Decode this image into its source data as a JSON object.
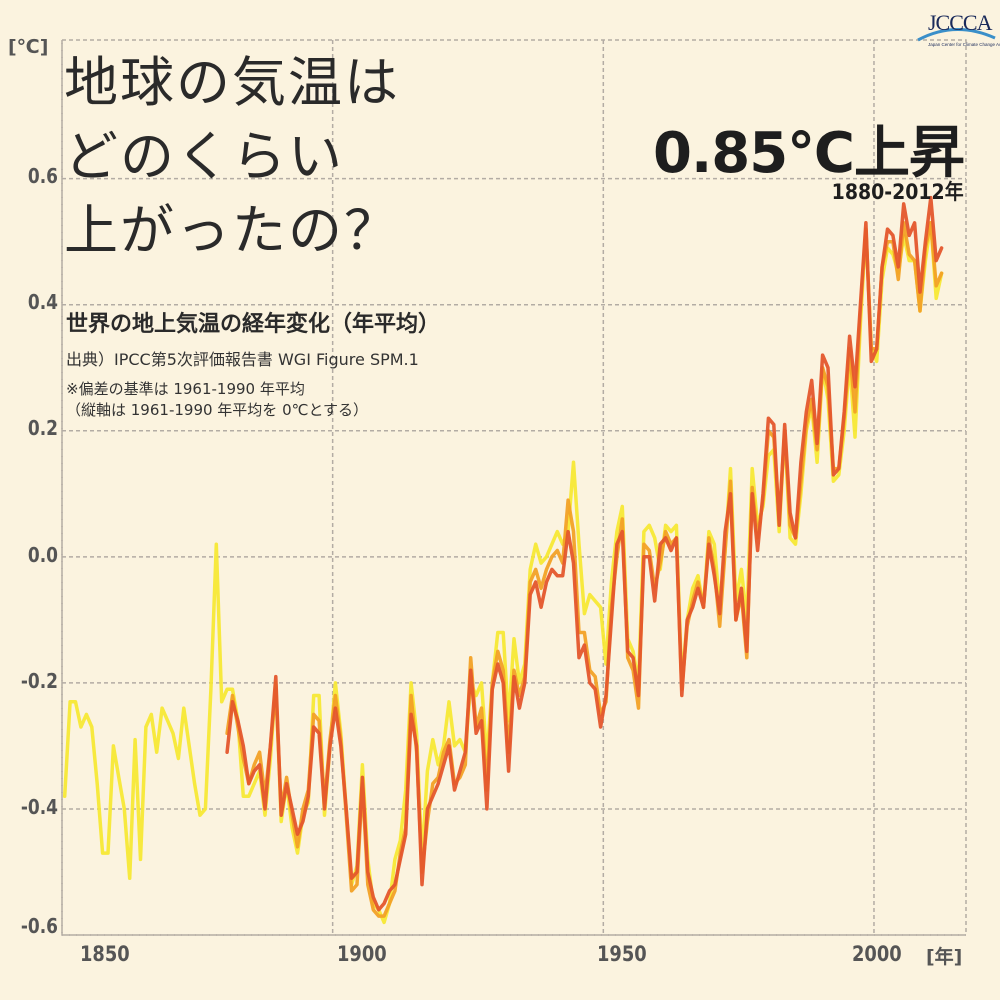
{
  "logo": {
    "text": "JCCCA",
    "subtext": "Japan Center for Climate Change Actions"
  },
  "title": {
    "lines": [
      "地球の気温は",
      "どのくらい",
      "上がったの？"
    ]
  },
  "headline": "0.85℃上昇",
  "period": "1880-2012年",
  "subtitle": "世界の地上気温の経年変化（年平均）",
  "source": "出典）IPCC第5次評価報告書 WGI Figure SPM.1",
  "notes": [
    "※偏差の基準は 1961-1990 年平均",
    "（縦軸は 1961-1990 年平均を 0℃とする）"
  ],
  "chart_data": {
    "type": "line",
    "title": "",
    "ylabel": "[℃]",
    "xlabel": "[年]",
    "xlim": [
      1850,
      2017
    ],
    "ylim": [
      -0.6,
      0.82
    ],
    "grid": true,
    "x_ticks": [
      "1850",
      "1900",
      "1950",
      "2000"
    ],
    "y_ticks": [
      "0.6",
      "0.4",
      "0.2",
      "0.0",
      "-0.2",
      "-0.4",
      "-0.6"
    ],
    "series": [
      {
        "color": "#f7e835",
        "start_year": 1850,
        "values": [
          -0.38,
          -0.23,
          -0.23,
          -0.27,
          -0.25,
          -0.27,
          -0.36,
          -0.47,
          -0.47,
          -0.3,
          -0.35,
          -0.4,
          -0.51,
          -0.29,
          -0.48,
          -0.27,
          -0.25,
          -0.31,
          -0.24,
          -0.26,
          -0.28,
          -0.32,
          -0.24,
          -0.3,
          -0.36,
          -0.41,
          -0.4,
          -0.21,
          0.02,
          -0.23,
          -0.21,
          -0.21,
          -0.26,
          -0.38,
          -0.38,
          -0.36,
          -0.34,
          -0.41,
          -0.32,
          -0.2,
          -0.42,
          -0.36,
          -0.43,
          -0.47,
          -0.41,
          -0.39,
          -0.22,
          -0.22,
          -0.41,
          -0.3,
          -0.2,
          -0.28,
          -0.4,
          -0.52,
          -0.49,
          -0.33,
          -0.48,
          -0.55,
          -0.56,
          -0.58,
          -0.55,
          -0.48,
          -0.45,
          -0.37,
          -0.2,
          -0.28,
          -0.48,
          -0.34,
          -0.29,
          -0.33,
          -0.3,
          -0.23,
          -0.3,
          -0.29,
          -0.31,
          -0.2,
          -0.22,
          -0.2,
          -0.32,
          -0.2,
          -0.12,
          -0.12,
          -0.26,
          -0.13,
          -0.2,
          -0.17,
          -0.02,
          0.02,
          -0.01,
          0.0,
          0.02,
          0.04,
          0.02,
          0.04,
          0.15,
          0.02,
          -0.09,
          -0.06,
          -0.07,
          -0.08,
          -0.17,
          -0.04,
          0.04,
          0.08,
          -0.13,
          -0.15,
          -0.2,
          0.04,
          0.05,
          0.03,
          -0.02,
          0.05,
          0.04,
          0.05,
          -0.2,
          -0.1,
          -0.05,
          -0.03,
          -0.08,
          0.04,
          0.02,
          -0.08,
          0.01,
          0.14,
          -0.07,
          -0.02,
          -0.1,
          0.14,
          0.05,
          0.08,
          0.16,
          0.17,
          0.04,
          0.2,
          0.03,
          0.02,
          0.1,
          0.2,
          0.24,
          0.15,
          0.3,
          0.25,
          0.12,
          0.13,
          0.2,
          0.31,
          0.19,
          0.37,
          0.52,
          0.33,
          0.31,
          0.44,
          0.49,
          0.48,
          0.45,
          0.51,
          0.47,
          0.47,
          0.39,
          0.47,
          0.53,
          0.41,
          0.45
        ]
      },
      {
        "color": "#f2a126",
        "start_year": 1880,
        "values": [
          -0.28,
          -0.22,
          -0.27,
          -0.32,
          -0.36,
          -0.33,
          -0.31,
          -0.38,
          -0.3,
          -0.21,
          -0.4,
          -0.35,
          -0.41,
          -0.46,
          -0.4,
          -0.37,
          -0.25,
          -0.26,
          -0.39,
          -0.29,
          -0.22,
          -0.29,
          -0.41,
          -0.53,
          -0.52,
          -0.36,
          -0.52,
          -0.56,
          -0.57,
          -0.57,
          -0.55,
          -0.53,
          -0.47,
          -0.43,
          -0.22,
          -0.31,
          -0.5,
          -0.42,
          -0.36,
          -0.35,
          -0.31,
          -0.29,
          -0.36,
          -0.35,
          -0.33,
          -0.16,
          -0.27,
          -0.24,
          -0.37,
          -0.2,
          -0.15,
          -0.18,
          -0.31,
          -0.18,
          -0.22,
          -0.19,
          -0.04,
          -0.02,
          -0.05,
          -0.02,
          0.0,
          0.01,
          -0.01,
          0.09,
          0.04,
          -0.12,
          -0.12,
          -0.18,
          -0.19,
          -0.25,
          -0.23,
          -0.08,
          0.0,
          0.06,
          -0.16,
          -0.18,
          -0.24,
          0.02,
          0.01,
          -0.05,
          -0.01,
          0.04,
          0.02,
          0.03,
          -0.21,
          -0.11,
          -0.07,
          -0.04,
          -0.08,
          0.03,
          -0.02,
          -0.11,
          0.01,
          0.12,
          -0.1,
          -0.06,
          -0.16,
          0.11,
          0.03,
          0.09,
          0.2,
          0.19,
          0.06,
          0.2,
          0.05,
          0.03,
          0.12,
          0.21,
          0.25,
          0.17,
          0.3,
          0.27,
          0.14,
          0.14,
          0.22,
          0.33,
          0.23,
          0.39,
          0.52,
          0.33,
          0.33,
          0.46,
          0.5,
          0.5,
          0.44,
          0.53,
          0.48,
          0.47,
          0.39,
          0.49,
          0.53,
          0.43,
          0.45
        ]
      },
      {
        "color": "#e4562c",
        "start_year": 1880,
        "values": [
          -0.31,
          -0.23,
          -0.26,
          -0.3,
          -0.36,
          -0.34,
          -0.33,
          -0.4,
          -0.3,
          -0.19,
          -0.41,
          -0.36,
          -0.4,
          -0.44,
          -0.42,
          -0.38,
          -0.27,
          -0.28,
          -0.4,
          -0.3,
          -0.24,
          -0.3,
          -0.4,
          -0.51,
          -0.5,
          -0.35,
          -0.5,
          -0.54,
          -0.56,
          -0.55,
          -0.53,
          -0.52,
          -0.48,
          -0.44,
          -0.25,
          -0.3,
          -0.52,
          -0.4,
          -0.38,
          -0.36,
          -0.33,
          -0.3,
          -0.37,
          -0.34,
          -0.31,
          -0.18,
          -0.28,
          -0.26,
          -0.4,
          -0.21,
          -0.17,
          -0.2,
          -0.34,
          -0.19,
          -0.24,
          -0.2,
          -0.06,
          -0.04,
          -0.08,
          -0.04,
          -0.02,
          -0.03,
          -0.03,
          0.04,
          -0.01,
          -0.16,
          -0.14,
          -0.2,
          -0.21,
          -0.27,
          -0.22,
          -0.1,
          0.02,
          0.04,
          -0.15,
          -0.16,
          -0.22,
          0.0,
          0.0,
          -0.07,
          0.02,
          0.03,
          0.01,
          0.03,
          -0.22,
          -0.1,
          -0.08,
          -0.05,
          -0.08,
          0.02,
          -0.03,
          -0.09,
          0.04,
          0.1,
          -0.1,
          -0.05,
          -0.15,
          0.1,
          0.01,
          0.1,
          0.22,
          0.21,
          0.05,
          0.21,
          0.07,
          0.03,
          0.15,
          0.23,
          0.28,
          0.18,
          0.32,
          0.3,
          0.13,
          0.14,
          0.23,
          0.35,
          0.27,
          0.4,
          0.53,
          0.31,
          0.33,
          0.46,
          0.52,
          0.51,
          0.46,
          0.56,
          0.51,
          0.53,
          0.42,
          0.5,
          0.57,
          0.47,
          0.49
        ]
      }
    ]
  }
}
